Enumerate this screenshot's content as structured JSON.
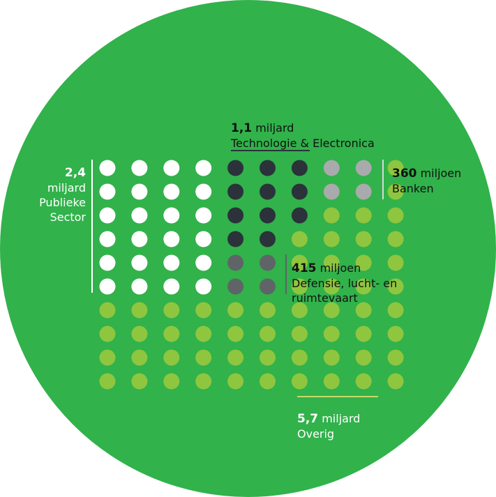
{
  "colors": {
    "background_circle": "#31b24b",
    "publieke_sector": "#ffffff",
    "technologie": "#2b323a",
    "banken": "#a8aaab",
    "defensie": "#5f6467",
    "overig": "#8fc63f",
    "dark_text": "#111111",
    "light_text": "#ffffff",
    "overig_line": "#c8d96a"
  },
  "chart_data": {
    "type": "dot_matrix",
    "grid": {
      "columns": 10,
      "rows": 10
    },
    "categories": [
      {
        "key": "publieke_sector",
        "value": "2,4",
        "unit": "miljard",
        "label_lines": [
          "Publieke",
          "Sector"
        ],
        "dots": 24
      },
      {
        "key": "technologie",
        "value": "1,1",
        "unit": "miljard",
        "label": "Technologie & Electronica",
        "dots": 11
      },
      {
        "key": "banken",
        "value": "360",
        "unit": "miljoen",
        "label": "Banken",
        "dots": 4
      },
      {
        "key": "defensie",
        "value": "415",
        "unit": "miljoen",
        "label_lines": [
          "Defensie, lucht- en",
          "ruimtevaart"
        ],
        "dots": 4
      },
      {
        "key": "overig",
        "value": "5,7",
        "unit": "miljard",
        "label": "Overig",
        "dots": 57
      }
    ],
    "dot_map": [
      "PPPPTTTBBO",
      "PPPPTTTBBO",
      "PPPPTTTOOO",
      "PPPPTTOOOO",
      "PPPPDDOOOO",
      "PPPPDDOOOO",
      "OOOOOOOOOO",
      "OOOOOOOOOO",
      "OOOOOOOOOO",
      "OOOOOOOOOO"
    ]
  }
}
